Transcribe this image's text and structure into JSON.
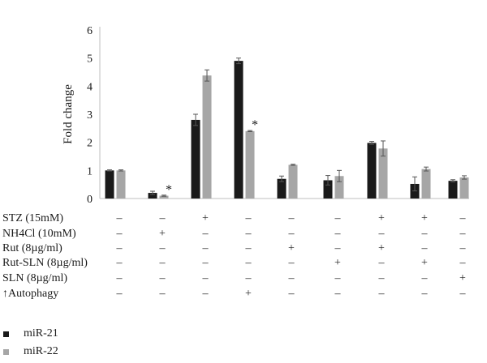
{
  "chart_data": {
    "type": "bar",
    "ylabel": "Fold change",
    "ylim": [
      0,
      6
    ],
    "yticks": [
      "0",
      "1",
      "2",
      "3",
      "4",
      "5",
      "6"
    ],
    "grid": false,
    "legend_position": "bottom-left",
    "series": [
      {
        "name": "miR-21",
        "color": "#1a1a1a",
        "values": [
          1.0,
          0.2,
          2.8,
          4.9,
          0.7,
          0.65,
          1.98,
          0.52,
          0.63
        ],
        "errors": [
          0.02,
          0.06,
          0.2,
          0.1,
          0.1,
          0.17,
          0.05,
          0.25,
          0.04
        ]
      },
      {
        "name": "miR-22",
        "color": "#a6a6a6",
        "values": [
          1.0,
          0.1,
          4.38,
          2.4,
          1.2,
          0.8,
          1.78,
          1.05,
          0.75
        ],
        "errors": [
          0.02,
          0.02,
          0.2,
          0.02,
          0.02,
          0.2,
          0.27,
          0.07,
          0.06
        ]
      }
    ],
    "annotations": [
      {
        "group": 1,
        "series": 1,
        "text": "*"
      },
      {
        "group": 3,
        "series": 1,
        "text": "*"
      }
    ],
    "condition_rows": [
      {
        "label": "STZ (15mM)",
        "marks": [
          "–",
          "–",
          "+",
          "–",
          "–",
          "–",
          "+",
          "+",
          "–"
        ]
      },
      {
        "label": "NH4Cl (10mM)",
        "marks": [
          "–",
          "+",
          "–",
          "–",
          "–",
          "–",
          "–",
          "–",
          "–"
        ]
      },
      {
        "label": "Rut (8µg/ml)",
        "marks": [
          "–",
          "–",
          "–",
          "–",
          "+",
          "–",
          "+",
          "–",
          "–"
        ]
      },
      {
        "label": "Rut-SLN (8µg/ml)",
        "marks": [
          "–",
          "–",
          "–",
          "–",
          "–",
          "+",
          "–",
          "+",
          "–"
        ]
      },
      {
        "label": "SLN (8µg/ml)",
        "marks": [
          "–",
          "–",
          "–",
          "–",
          "–",
          "–",
          "–",
          "–",
          "+"
        ]
      },
      {
        "label": "↑Autophagy",
        "marks": [
          "–",
          "–",
          "–",
          "+",
          "–",
          "–",
          "–",
          "–",
          "–"
        ]
      }
    ]
  }
}
